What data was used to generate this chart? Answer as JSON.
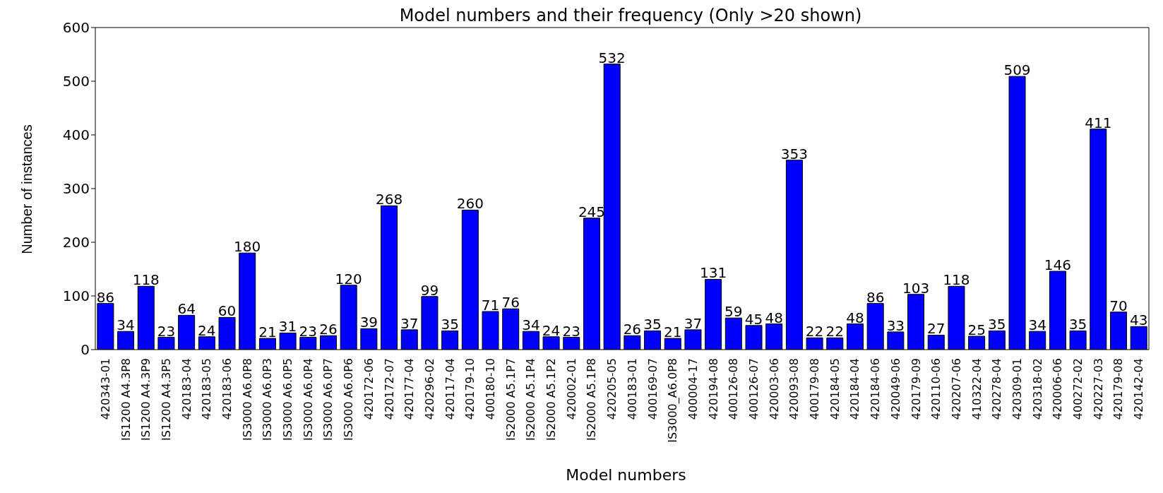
{
  "chart_data": {
    "type": "bar",
    "title": "Model numbers and their frequency (Only >20 shown)",
    "xlabel": "Model numbers",
    "ylabel": "Number of instances",
    "categories": [
      "420343-01",
      "IS1200 A4.3P8",
      "IS1200 A4.3P9",
      "IS1200 A4.3P5",
      "420183-04",
      "420183-05",
      "420183-06",
      "IS3000 A6.0P8",
      "IS3000 A6.0P3",
      "IS3000 A6.0P5",
      "IS3000 A6.0P4",
      "IS3000 A6.0P7",
      "IS3000 A6.0P6",
      "420172-06",
      "420172-07",
      "420177-04",
      "420296-02",
      "420117-04",
      "420179-10",
      "400180-10",
      "IS2000 A5.1P7",
      "IS2000 A5.1P4",
      "IS2000 A5.1P2",
      "420002-01",
      "IS2000 A5.1P8",
      "420205-05",
      "400183-01",
      "400169-07",
      "IS3000_A6.0P8",
      "400004-17",
      "420194-08",
      "400126-08",
      "400126-07",
      "420003-06",
      "420093-08",
      "400179-08",
      "420184-05",
      "420184-04",
      "420184-06",
      "420049-06",
      "420179-09",
      "420110-06",
      "420207-06",
      "410322-04",
      "420278-04",
      "420309-01",
      "420318-02",
      "420006-06",
      "400272-02",
      "420227-03",
      "420179-08",
      "420142-04"
    ],
    "values": [
      86,
      34,
      118,
      23,
      64,
      24,
      60,
      180,
      21,
      31,
      23,
      26,
      120,
      39,
      268,
      37,
      99,
      35,
      260,
      71,
      76,
      34,
      24,
      23,
      245,
      532,
      26,
      35,
      21,
      37,
      131,
      59,
      45,
      48,
      353,
      22,
      22,
      48,
      86,
      33,
      103,
      27,
      118,
      25,
      35,
      509,
      34,
      146,
      35,
      411,
      70,
      43
    ],
    "color": "#0000ff",
    "ylim": [
      0,
      600
    ],
    "yticks": [
      0,
      100,
      200,
      300,
      400,
      500,
      600
    ],
    "data_labels": true
  }
}
